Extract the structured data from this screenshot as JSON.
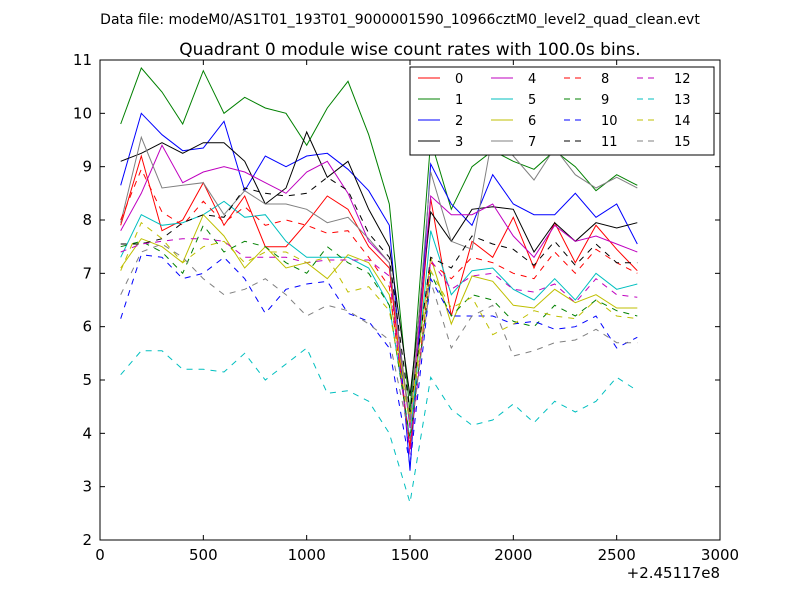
{
  "file_title": "Data file: modeM0/AS1T01_193T01_9000001590_10966cztM0_level2_quad_clean.evt",
  "chart_data": {
    "type": "line",
    "title": "Quadrant 0 module wise count rates with 100.0s bins.",
    "xlabel": "",
    "ylabel": "",
    "x_offset_label": "+2.45117e8",
    "xlim": [
      0,
      3000
    ],
    "ylim": [
      2,
      11
    ],
    "xticks": [
      0,
      500,
      1000,
      1500,
      2000,
      2500,
      3000
    ],
    "yticks": [
      2,
      3,
      4,
      5,
      6,
      7,
      8,
      9,
      10,
      11
    ],
    "grid": false,
    "legend_position": "top-right",
    "legend_columns": 4,
    "x": [
      100,
      200,
      300,
      400,
      500,
      600,
      700,
      800,
      900,
      1000,
      1100,
      1200,
      1300,
      1400,
      1500,
      1600,
      1700,
      1800,
      1900,
      2000,
      2100,
      2200,
      2300,
      2400,
      2500,
      2600
    ],
    "series": [
      {
        "name": "0",
        "color": "#ff0000",
        "dash": "solid",
        "values": [
          7.9,
          9.2,
          7.8,
          8.0,
          8.7,
          7.9,
          8.45,
          7.5,
          7.5,
          7.95,
          8.45,
          8.2,
          7.5,
          7.1,
          3.7,
          8.4,
          6.2,
          7.6,
          7.3,
          8.05,
          7.1,
          7.95,
          7.2,
          7.9,
          7.45,
          7.05
        ]
      },
      {
        "name": "1",
        "color": "#008000",
        "dash": "solid",
        "values": [
          9.8,
          10.85,
          10.4,
          9.8,
          10.8,
          10.0,
          10.3,
          10.1,
          10.0,
          9.4,
          10.1,
          10.6,
          9.6,
          8.3,
          4.4,
          9.5,
          8.2,
          9.0,
          9.3,
          9.1,
          8.95,
          9.3,
          9.0,
          8.55,
          8.85,
          8.65
        ]
      },
      {
        "name": "2",
        "color": "#0000ff",
        "dash": "solid",
        "values": [
          8.65,
          10.0,
          9.6,
          9.3,
          9.35,
          9.85,
          8.55,
          9.2,
          9.0,
          9.2,
          9.25,
          8.95,
          8.55,
          7.9,
          3.3,
          9.05,
          8.3,
          7.9,
          8.85,
          8.3,
          8.1,
          8.1,
          8.5,
          8.05,
          8.3,
          7.55
        ]
      },
      {
        "name": "3",
        "color": "#000000",
        "dash": "solid",
        "values": [
          9.1,
          9.25,
          9.45,
          9.25,
          9.45,
          9.45,
          9.1,
          8.3,
          8.6,
          9.65,
          8.8,
          9.1,
          8.2,
          7.5,
          4.7,
          8.15,
          7.6,
          8.2,
          8.25,
          8.2,
          7.4,
          7.95,
          7.6,
          7.95,
          7.85,
          7.95
        ]
      },
      {
        "name": "4",
        "color": "#bf00bf",
        "dash": "solid",
        "values": [
          7.8,
          8.5,
          9.4,
          8.7,
          8.9,
          9.0,
          8.9,
          8.7,
          8.5,
          8.9,
          9.1,
          8.5,
          7.6,
          7.2,
          4.1,
          8.45,
          8.1,
          8.1,
          8.3,
          7.7,
          7.3,
          7.9,
          7.6,
          7.7,
          7.55,
          7.4
        ]
      },
      {
        "name": "5",
        "color": "#00bfbf",
        "dash": "solid",
        "values": [
          7.3,
          8.1,
          7.9,
          7.95,
          8.1,
          8.35,
          8.05,
          8.1,
          7.6,
          7.3,
          7.3,
          7.3,
          7.1,
          6.4,
          3.9,
          7.8,
          6.6,
          7.05,
          7.1,
          6.7,
          6.5,
          6.9,
          6.5,
          7.0,
          6.7,
          6.8
        ]
      },
      {
        "name": "6",
        "color": "#bfbf00",
        "dash": "solid",
        "values": [
          7.1,
          7.65,
          7.5,
          7.2,
          8.1,
          7.7,
          7.1,
          7.5,
          7.1,
          7.2,
          6.9,
          7.35,
          7.2,
          6.6,
          4.3,
          7.3,
          6.05,
          6.95,
          6.85,
          6.4,
          6.35,
          6.7,
          6.45,
          6.6,
          6.35,
          6.35
        ]
      },
      {
        "name": "7",
        "color": "#808080",
        "dash": "solid",
        "values": [
          7.95,
          9.55,
          8.6,
          8.65,
          8.7,
          8.1,
          8.55,
          8.3,
          8.3,
          8.2,
          7.95,
          8.05,
          7.65,
          7.2,
          4.2,
          8.9,
          7.6,
          7.45,
          9.6,
          9.2,
          8.75,
          9.35,
          8.85,
          8.6,
          8.8,
          8.6
        ]
      },
      {
        "name": "8",
        "color": "#ff0000",
        "dash": "dashed",
        "values": [
          8.0,
          8.95,
          8.15,
          7.9,
          8.35,
          7.95,
          8.25,
          7.9,
          8.0,
          7.9,
          7.75,
          7.8,
          7.3,
          6.75,
          3.75,
          7.2,
          6.9,
          7.3,
          7.2,
          7.0,
          6.9,
          7.4,
          7.0,
          7.45,
          7.2,
          7.0
        ]
      },
      {
        "name": "9",
        "color": "#008000",
        "dash": "dashed",
        "values": [
          7.5,
          7.6,
          7.4,
          7.0,
          7.9,
          7.4,
          7.6,
          7.5,
          7.2,
          7.0,
          7.5,
          7.2,
          7.0,
          6.4,
          3.9,
          7.0,
          6.2,
          6.6,
          6.5,
          6.1,
          6.0,
          6.4,
          6.2,
          6.5,
          6.3,
          6.2
        ]
      },
      {
        "name": "10",
        "color": "#0000ff",
        "dash": "dashed",
        "values": [
          6.15,
          7.35,
          7.3,
          6.9,
          7.0,
          7.3,
          6.9,
          6.25,
          6.7,
          6.8,
          6.85,
          6.25,
          6.1,
          5.6,
          3.4,
          6.9,
          6.2,
          6.2,
          6.2,
          6.05,
          6.1,
          5.95,
          6.0,
          6.2,
          5.6,
          5.8
        ]
      },
      {
        "name": "11",
        "color": "#000000",
        "dash": "dashed",
        "values": [
          7.55,
          7.55,
          7.65,
          7.95,
          8.1,
          8.05,
          8.6,
          8.5,
          8.45,
          8.5,
          8.8,
          8.55,
          7.75,
          7.3,
          4.4,
          7.3,
          7.1,
          7.7,
          7.55,
          7.45,
          7.15,
          7.6,
          7.15,
          7.55,
          7.2,
          7.2
        ]
      },
      {
        "name": "12",
        "color": "#bf00bf",
        "dash": "dashed",
        "values": [
          7.4,
          7.55,
          7.6,
          7.65,
          7.65,
          7.6,
          7.3,
          7.3,
          7.3,
          7.2,
          7.25,
          7.25,
          7.25,
          6.95,
          3.6,
          7.25,
          6.7,
          6.95,
          7.0,
          6.7,
          6.65,
          6.8,
          6.45,
          6.9,
          6.6,
          6.55
        ]
      },
      {
        "name": "13",
        "color": "#00bfbf",
        "dash": "dashed",
        "values": [
          5.1,
          5.55,
          5.55,
          5.2,
          5.2,
          5.15,
          5.5,
          5.0,
          5.3,
          5.6,
          4.75,
          4.8,
          4.6,
          4.0,
          2.7,
          5.05,
          4.45,
          4.15,
          4.25,
          4.55,
          4.2,
          4.6,
          4.4,
          4.6,
          5.05,
          4.8
        ]
      },
      {
        "name": "14",
        "color": "#bfbf00",
        "dash": "dashed",
        "values": [
          7.05,
          7.95,
          7.65,
          7.2,
          7.5,
          7.6,
          7.2,
          7.4,
          7.4,
          7.2,
          7.3,
          6.65,
          6.75,
          6.3,
          4.2,
          7.05,
          6.35,
          6.55,
          5.85,
          6.05,
          6.3,
          6.2,
          6.15,
          6.5,
          6.2,
          6.15
        ]
      },
      {
        "name": "15",
        "color": "#808080",
        "dash": "dashed",
        "values": [
          6.6,
          7.4,
          7.55,
          7.3,
          6.9,
          6.6,
          6.7,
          6.9,
          6.6,
          6.2,
          6.4,
          6.3,
          6.05,
          5.75,
          3.9,
          6.85,
          5.6,
          6.2,
          6.4,
          5.45,
          5.55,
          5.7,
          5.75,
          5.95,
          5.7,
          5.7
        ]
      }
    ]
  }
}
